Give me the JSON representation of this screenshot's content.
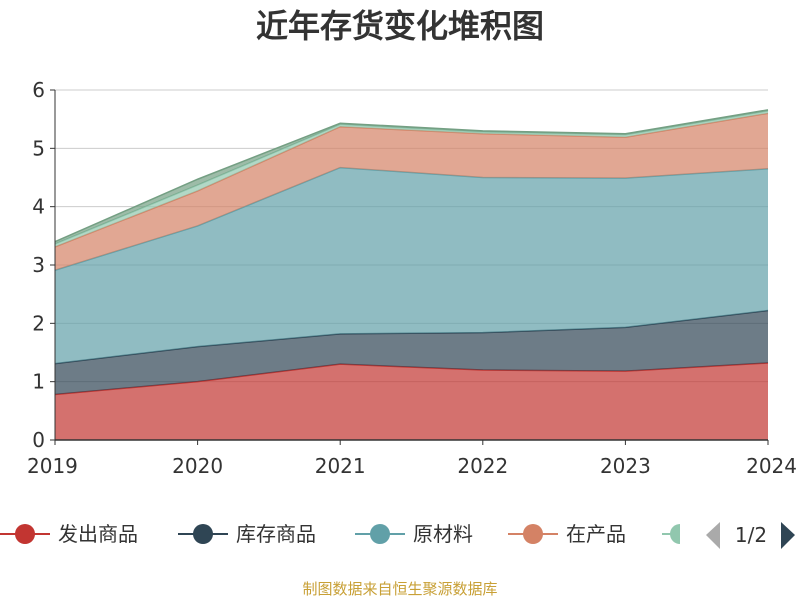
{
  "chart_data": {
    "type": "area",
    "stacked": true,
    "title": "近年存货变化堆积图",
    "xlabel": "",
    "ylabel": "",
    "x": [
      "2019",
      "2020",
      "2021",
      "2022",
      "2023",
      "2024"
    ],
    "ylim": [
      0,
      6
    ],
    "yticks": [
      0,
      1,
      2,
      3,
      4,
      5,
      6
    ],
    "grid": true,
    "legend_position": "bottom",
    "series": [
      {
        "name": "发出商品",
        "color": "#c23531",
        "values": [
          0.78,
          1.0,
          1.3,
          1.2,
          1.18,
          1.32
        ]
      },
      {
        "name": "库存商品",
        "color": "#2f4554",
        "values": [
          0.53,
          0.6,
          0.52,
          0.64,
          0.75,
          0.9
        ]
      },
      {
        "name": "原材料",
        "color": "#61a0a8",
        "values": [
          1.6,
          2.07,
          2.85,
          2.66,
          2.56,
          2.43
        ]
      },
      {
        "name": "在产品",
        "color": "#d48265",
        "values": [
          0.4,
          0.6,
          0.7,
          0.75,
          0.7,
          0.95
        ]
      },
      {
        "name": "",
        "color": "#91c7ae",
        "values": [
          0.05,
          0.1,
          0.04,
          0.03,
          0.04,
          0.04
        ]
      },
      {
        "name": "",
        "color": "#749f83",
        "values": [
          0.04,
          0.1,
          0.02,
          0.02,
          0.02,
          0.02
        ]
      }
    ],
    "legend_pager": "1/2",
    "source_note": "制图数据来自恒生聚源数据库"
  }
}
